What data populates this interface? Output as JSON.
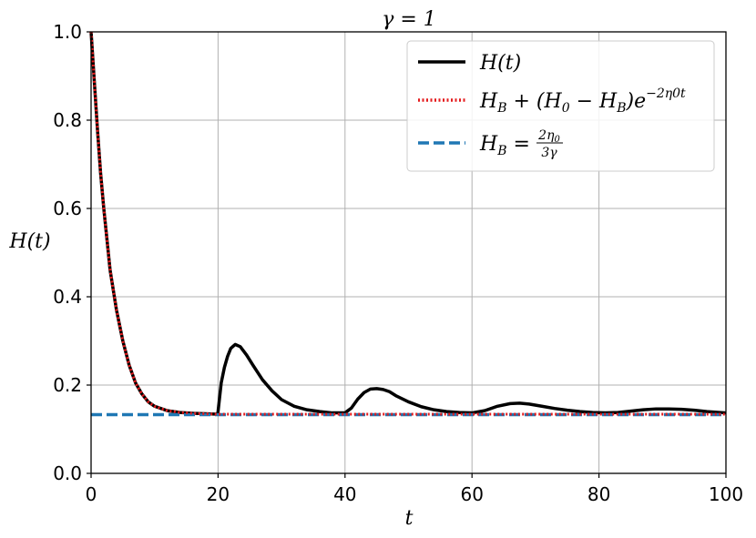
{
  "chart_data": {
    "type": "line",
    "title": "γ = 1",
    "xlabel": "t",
    "ylabel": "H(t)",
    "xlim": [
      0,
      100
    ],
    "ylim": [
      0,
      1.0
    ],
    "x_ticks": [
      "0",
      "20",
      "40",
      "60",
      "80",
      "100"
    ],
    "y_ticks": [
      "0.0",
      "0.2",
      "0.4",
      "0.6",
      "0.8",
      "1.0"
    ],
    "grid": true,
    "legend_position": "top-right",
    "legend": {
      "h_label": "H(t)",
      "fit_label_main": "H",
      "fit_label_sub_b": "B",
      "fit_label_rest": " + (H",
      "fit_label_sub_0": "0",
      "fit_label_minus": " − H",
      "fit_label_sub_b2": "B",
      "fit_label_close": ")e",
      "fit_label_exp": "−2η0t",
      "hb_label_main": "H",
      "hb_label_sub": "B",
      "hb_label_eq": " = ",
      "hb_frac_num": "2η",
      "hb_frac_num_sub": "0",
      "hb_frac_den": "3γ"
    },
    "colors": {
      "h": "#000000",
      "fit": "#e41a1c",
      "hb": "#1f77b4",
      "grid": "#b0b0b0"
    },
    "series": [
      {
        "name": "H(t)",
        "x": [
          0,
          0.5,
          1,
          1.5,
          2,
          2.5,
          3,
          4,
          5,
          6,
          7,
          8,
          9,
          10,
          12,
          14,
          16,
          18,
          19.9,
          20,
          20.5,
          21,
          21.5,
          22,
          22.7,
          23.5,
          24.5,
          25.5,
          27,
          28.5,
          30,
          32,
          34,
          36,
          38,
          40,
          41,
          42,
          43,
          44,
          45,
          46,
          47,
          48,
          50,
          52,
          54,
          56,
          58,
          60,
          62,
          64,
          66,
          67.5,
          69,
          71,
          73,
          75,
          77,
          79,
          81,
          83,
          85,
          87,
          89,
          91,
          93,
          95,
          97,
          100
        ],
        "y": [
          1.0,
          0.89,
          0.78,
          0.68,
          0.6,
          0.53,
          0.46,
          0.37,
          0.3,
          0.245,
          0.205,
          0.18,
          0.162,
          0.152,
          0.142,
          0.138,
          0.136,
          0.135,
          0.134,
          0.14,
          0.205,
          0.24,
          0.265,
          0.283,
          0.292,
          0.287,
          0.268,
          0.245,
          0.212,
          0.187,
          0.167,
          0.152,
          0.144,
          0.14,
          0.137,
          0.137,
          0.148,
          0.168,
          0.183,
          0.191,
          0.192,
          0.19,
          0.185,
          0.176,
          0.162,
          0.151,
          0.144,
          0.14,
          0.138,
          0.137,
          0.142,
          0.152,
          0.158,
          0.159,
          0.157,
          0.152,
          0.147,
          0.143,
          0.14,
          0.138,
          0.137,
          0.138,
          0.141,
          0.144,
          0.146,
          0.146,
          0.145,
          0.143,
          0.14,
          0.137
        ]
      },
      {
        "name": "fit",
        "x": [
          0,
          0.5,
          1,
          1.5,
          2,
          2.5,
          3,
          4,
          5,
          6,
          7,
          8,
          9,
          10,
          12,
          14,
          16,
          18,
          20,
          30,
          40,
          50,
          60,
          70,
          80,
          90,
          100
        ],
        "y": [
          1.0,
          0.89,
          0.78,
          0.68,
          0.6,
          0.53,
          0.46,
          0.37,
          0.3,
          0.245,
          0.205,
          0.18,
          0.162,
          0.152,
          0.142,
          0.138,
          0.136,
          0.135,
          0.134,
          0.134,
          0.134,
          0.134,
          0.134,
          0.134,
          0.134,
          0.134,
          0.134
        ]
      },
      {
        "name": "HB",
        "x": [
          0,
          100
        ],
        "y": [
          0.133,
          0.133
        ]
      }
    ]
  }
}
